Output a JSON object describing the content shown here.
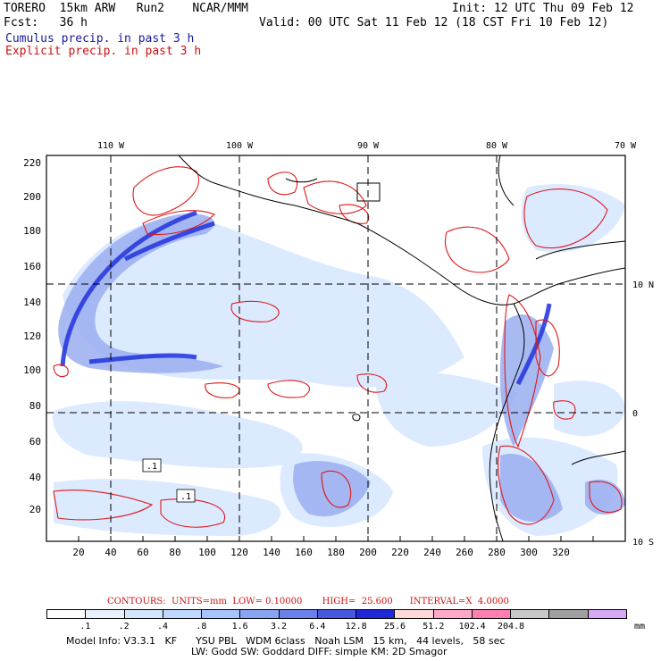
{
  "header": {
    "line1_left": "TORERO  15km ARW   Run2    NCAR/MMM",
    "line1_right": "Init: 12 UTC Thu 09 Feb 12",
    "line2_left": "Fcst:   36 h",
    "line2_right": "Valid: 00 UTC Sat 11 Feb 12 (18 CST Fri 10 Feb 12)",
    "cumulus_label": "Cumulus precip. in past 3 h",
    "explicit_label": "Explicit precip. in past 3 h"
  },
  "map": {
    "top_lon_labels": [
      "110 W",
      "100 W",
      "90 W",
      "80 W",
      "70 W"
    ],
    "right_lat_labels": [
      "10 N",
      "0",
      "10 S"
    ],
    "x_tick_labels": [
      "20",
      "40",
      "60",
      "80",
      "100",
      "120",
      "140",
      "160",
      "180",
      "200",
      "220",
      "240",
      "260",
      "280",
      "300",
      "320"
    ],
    "y_tick_labels": [
      "20",
      "40",
      "60",
      "80",
      "100",
      "120",
      "140",
      "160",
      "180",
      "200",
      "220"
    ],
    "box_labels": [
      ".1",
      ".1"
    ]
  },
  "contours": {
    "text": "CONTOURS:  UNITS=mm  LOW= 0.10000       HIGH=  25.600      INTERVAL=X  4.0000"
  },
  "colorbar": {
    "colors": [
      "#ffffff",
      "#e8f2ff",
      "#d4e6ff",
      "#c0d8ff",
      "#a8c4ff",
      "#8aa4f4",
      "#6a80ea",
      "#4658e0",
      "#1e28d8",
      "#ffd8d8",
      "#ffa8c8",
      "#ff80b0",
      "#c8c8c8",
      "#a0a0a0",
      "#d8a8f4"
    ],
    "labels": [
      ".1",
      ".2",
      ".4",
      ".8",
      "1.6",
      "3.2",
      "6.4",
      "12.8",
      "25.6",
      "51.2",
      "102.4",
      "204.8"
    ],
    "unit": "mm"
  },
  "model_info": {
    "line1": "Model Info: V3.3.1   KF      YSU PBL   WDM 6class   Noah LSM   15 km,   44 levels,   58 sec",
    "line2": "LW: Godd SW: Goddard DIFF: simple KM: 2D Smagor"
  }
}
